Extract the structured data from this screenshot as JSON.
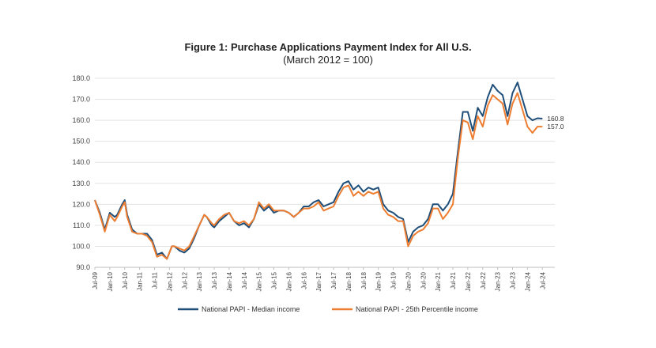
{
  "chart_data": {
    "type": "line",
    "title": "Figure 1: Purchase Applications Payment Index for All U.S.",
    "subtitle": "(March 2012 = 100)",
    "xlabel": "",
    "ylabel": "",
    "ylim": [
      90,
      180
    ],
    "yticks": [
      "90.0",
      "100.0",
      "110.0",
      "120.0",
      "130.0",
      "140.0",
      "150.0",
      "160.0",
      "170.0",
      "180.0"
    ],
    "xticks": [
      "Jul-09",
      "Jan-10",
      "Jul-10",
      "Jan-11",
      "Jul-11",
      "Jan-12",
      "Jul-12",
      "Jan-13",
      "Jul-13",
      "Jan-14",
      "Jul-14",
      "Jan-15",
      "Jul-15",
      "Jan-16",
      "Jul-16",
      "Jan-17",
      "Jul-17",
      "Jan-18",
      "Jul-18",
      "Jan-19",
      "Jul-19",
      "Jan-20",
      "Jul-20",
      "Jan-21",
      "Jul-21",
      "Jan-22",
      "Jul-22",
      "Jan-23",
      "Jul-23",
      "Jan-24",
      "Jul-24"
    ],
    "x_start": "Jul-09",
    "x_end": "Dec-24",
    "grid": "horizontal",
    "legend": "bottom",
    "series": [
      {
        "name": "National PAPI - Median income",
        "color": "#1f4e79",
        "end_label": "160.8",
        "points": [
          [
            "Jul-09",
            122
          ],
          [
            "Sep-09",
            116
          ],
          [
            "Nov-09",
            108
          ],
          [
            "Jan-10",
            116
          ],
          [
            "Mar-10",
            114
          ],
          [
            "Apr-10",
            115
          ],
          [
            "Jun-10",
            120
          ],
          [
            "Jul-10",
            122
          ],
          [
            "Aug-10",
            115
          ],
          [
            "Oct-10",
            108
          ],
          [
            "Dec-10",
            106
          ],
          [
            "Feb-11",
            106
          ],
          [
            "Apr-11",
            106
          ],
          [
            "Jun-11",
            103
          ],
          [
            "Aug-11",
            96
          ],
          [
            "Oct-11",
            97
          ],
          [
            "Dec-11",
            94
          ],
          [
            "Feb-12",
            100
          ],
          [
            "Mar-12",
            100
          ],
          [
            "May-12",
            98
          ],
          [
            "Jul-12",
            97
          ],
          [
            "Sep-12",
            99
          ],
          [
            "Nov-12",
            104
          ],
          [
            "Jan-13",
            110
          ],
          [
            "Mar-13",
            115
          ],
          [
            "Apr-13",
            114
          ],
          [
            "Jun-13",
            110
          ],
          [
            "Jul-13",
            109
          ],
          [
            "Sep-13",
            112
          ],
          [
            "Nov-13",
            114
          ],
          [
            "Jan-14",
            116
          ],
          [
            "Mar-14",
            112
          ],
          [
            "May-14",
            110
          ],
          [
            "Jul-14",
            111
          ],
          [
            "Sep-14",
            109
          ],
          [
            "Nov-14",
            113
          ],
          [
            "Jan-15",
            120
          ],
          [
            "Mar-15",
            117
          ],
          [
            "May-15",
            119
          ],
          [
            "Jul-15",
            116
          ],
          [
            "Sep-15",
            117
          ],
          [
            "Nov-15",
            117
          ],
          [
            "Jan-16",
            116
          ],
          [
            "Mar-16",
            114
          ],
          [
            "May-16",
            116
          ],
          [
            "Jul-16",
            119
          ],
          [
            "Sep-16",
            119
          ],
          [
            "Nov-16",
            121
          ],
          [
            "Jan-17",
            122
          ],
          [
            "Mar-17",
            119
          ],
          [
            "May-17",
            120
          ],
          [
            "Jul-17",
            121
          ],
          [
            "Sep-17",
            126
          ],
          [
            "Nov-17",
            130
          ],
          [
            "Jan-18",
            131
          ],
          [
            "Mar-18",
            127
          ],
          [
            "May-18",
            129
          ],
          [
            "Jul-18",
            126
          ],
          [
            "Sep-18",
            128
          ],
          [
            "Nov-18",
            127
          ],
          [
            "Jan-19",
            128
          ],
          [
            "Mar-19",
            120
          ],
          [
            "May-19",
            117
          ],
          [
            "Jul-19",
            116
          ],
          [
            "Sep-19",
            114
          ],
          [
            "Nov-19",
            113
          ],
          [
            "Jan-20",
            102
          ],
          [
            "Mar-20",
            107
          ],
          [
            "May-20",
            109
          ],
          [
            "Jul-20",
            110
          ],
          [
            "Sep-20",
            113
          ],
          [
            "Nov-20",
            120
          ],
          [
            "Jan-21",
            120
          ],
          [
            "Mar-21",
            117
          ],
          [
            "May-21",
            120
          ],
          [
            "Jul-21",
            125
          ],
          [
            "Sep-21",
            145
          ],
          [
            "Nov-21",
            164
          ],
          [
            "Jan-22",
            164
          ],
          [
            "Mar-22",
            155
          ],
          [
            "May-22",
            166
          ],
          [
            "Jul-22",
            162
          ],
          [
            "Sep-22",
            171
          ],
          [
            "Nov-22",
            177
          ],
          [
            "Jan-23",
            174
          ],
          [
            "Mar-23",
            172
          ],
          [
            "May-23",
            162
          ],
          [
            "Jul-23",
            173
          ],
          [
            "Sep-23",
            178
          ],
          [
            "Nov-23",
            170
          ],
          [
            "Jan-24",
            162
          ],
          [
            "Mar-24",
            160
          ],
          [
            "May-24",
            161
          ],
          [
            "Jul-24",
            160.8
          ]
        ]
      },
      {
        "name": "National PAPI - 25th Percentile income",
        "color": "#ed7d31",
        "end_label": "157.0",
        "points": [
          [
            "Jul-09",
            122
          ],
          [
            "Sep-09",
            115
          ],
          [
            "Nov-09",
            107
          ],
          [
            "Jan-10",
            115
          ],
          [
            "Mar-10",
            112
          ],
          [
            "Apr-10",
            114
          ],
          [
            "Jun-10",
            119
          ],
          [
            "Jul-10",
            121
          ],
          [
            "Aug-10",
            114
          ],
          [
            "Oct-10",
            107
          ],
          [
            "Dec-10",
            106
          ],
          [
            "Feb-11",
            106
          ],
          [
            "Apr-11",
            105
          ],
          [
            "Jun-11",
            102
          ],
          [
            "Aug-11",
            95
          ],
          [
            "Oct-11",
            96
          ],
          [
            "Dec-11",
            94
          ],
          [
            "Feb-12",
            100
          ],
          [
            "Mar-12",
            100
          ],
          [
            "May-12",
            99
          ],
          [
            "Jul-12",
            98
          ],
          [
            "Sep-12",
            100
          ],
          [
            "Nov-12",
            105
          ],
          [
            "Jan-13",
            110
          ],
          [
            "Mar-13",
            115
          ],
          [
            "Apr-13",
            114
          ],
          [
            "Jun-13",
            111
          ],
          [
            "Jul-13",
            110
          ],
          [
            "Sep-13",
            113
          ],
          [
            "Nov-13",
            115
          ],
          [
            "Jan-14",
            116
          ],
          [
            "Mar-14",
            112
          ],
          [
            "May-14",
            111
          ],
          [
            "Jul-14",
            112
          ],
          [
            "Sep-14",
            110
          ],
          [
            "Nov-14",
            113
          ],
          [
            "Jan-15",
            121
          ],
          [
            "Mar-15",
            118
          ],
          [
            "May-15",
            120
          ],
          [
            "Jul-15",
            117
          ],
          [
            "Sep-15",
            117
          ],
          [
            "Nov-15",
            117
          ],
          [
            "Jan-16",
            116
          ],
          [
            "Mar-16",
            114
          ],
          [
            "May-16",
            116
          ],
          [
            "Jul-16",
            118
          ],
          [
            "Sep-16",
            118
          ],
          [
            "Nov-16",
            119
          ],
          [
            "Jan-17",
            121
          ],
          [
            "Mar-17",
            117
          ],
          [
            "May-17",
            118
          ],
          [
            "Jul-17",
            119
          ],
          [
            "Sep-17",
            124
          ],
          [
            "Nov-17",
            128
          ],
          [
            "Jan-18",
            129
          ],
          [
            "Mar-18",
            124
          ],
          [
            "May-18",
            126
          ],
          [
            "Jul-18",
            124
          ],
          [
            "Sep-18",
            126
          ],
          [
            "Nov-18",
            125
          ],
          [
            "Jan-19",
            126
          ],
          [
            "Mar-19",
            118
          ],
          [
            "May-19",
            115
          ],
          [
            "Jul-19",
            114
          ],
          [
            "Sep-19",
            112
          ],
          [
            "Nov-19",
            112
          ],
          [
            "Jan-20",
            100
          ],
          [
            "Mar-20",
            105
          ],
          [
            "May-20",
            107
          ],
          [
            "Jul-20",
            108
          ],
          [
            "Sep-20",
            111
          ],
          [
            "Nov-20",
            118
          ],
          [
            "Jan-21",
            118
          ],
          [
            "Mar-21",
            113
          ],
          [
            "May-21",
            116
          ],
          [
            "Jul-21",
            120
          ],
          [
            "Sep-21",
            142
          ],
          [
            "Nov-21",
            160
          ],
          [
            "Jan-22",
            159
          ],
          [
            "Mar-22",
            151
          ],
          [
            "May-22",
            162
          ],
          [
            "Jul-22",
            157
          ],
          [
            "Sep-22",
            167
          ],
          [
            "Nov-22",
            172
          ],
          [
            "Jan-23",
            170
          ],
          [
            "Mar-23",
            168
          ],
          [
            "May-23",
            158
          ],
          [
            "Jul-23",
            168
          ],
          [
            "Sep-23",
            173
          ],
          [
            "Nov-23",
            165
          ],
          [
            "Jan-24",
            157
          ],
          [
            "Mar-24",
            154
          ],
          [
            "May-24",
            157
          ],
          [
            "Jul-24",
            157.0
          ]
        ]
      }
    ]
  }
}
